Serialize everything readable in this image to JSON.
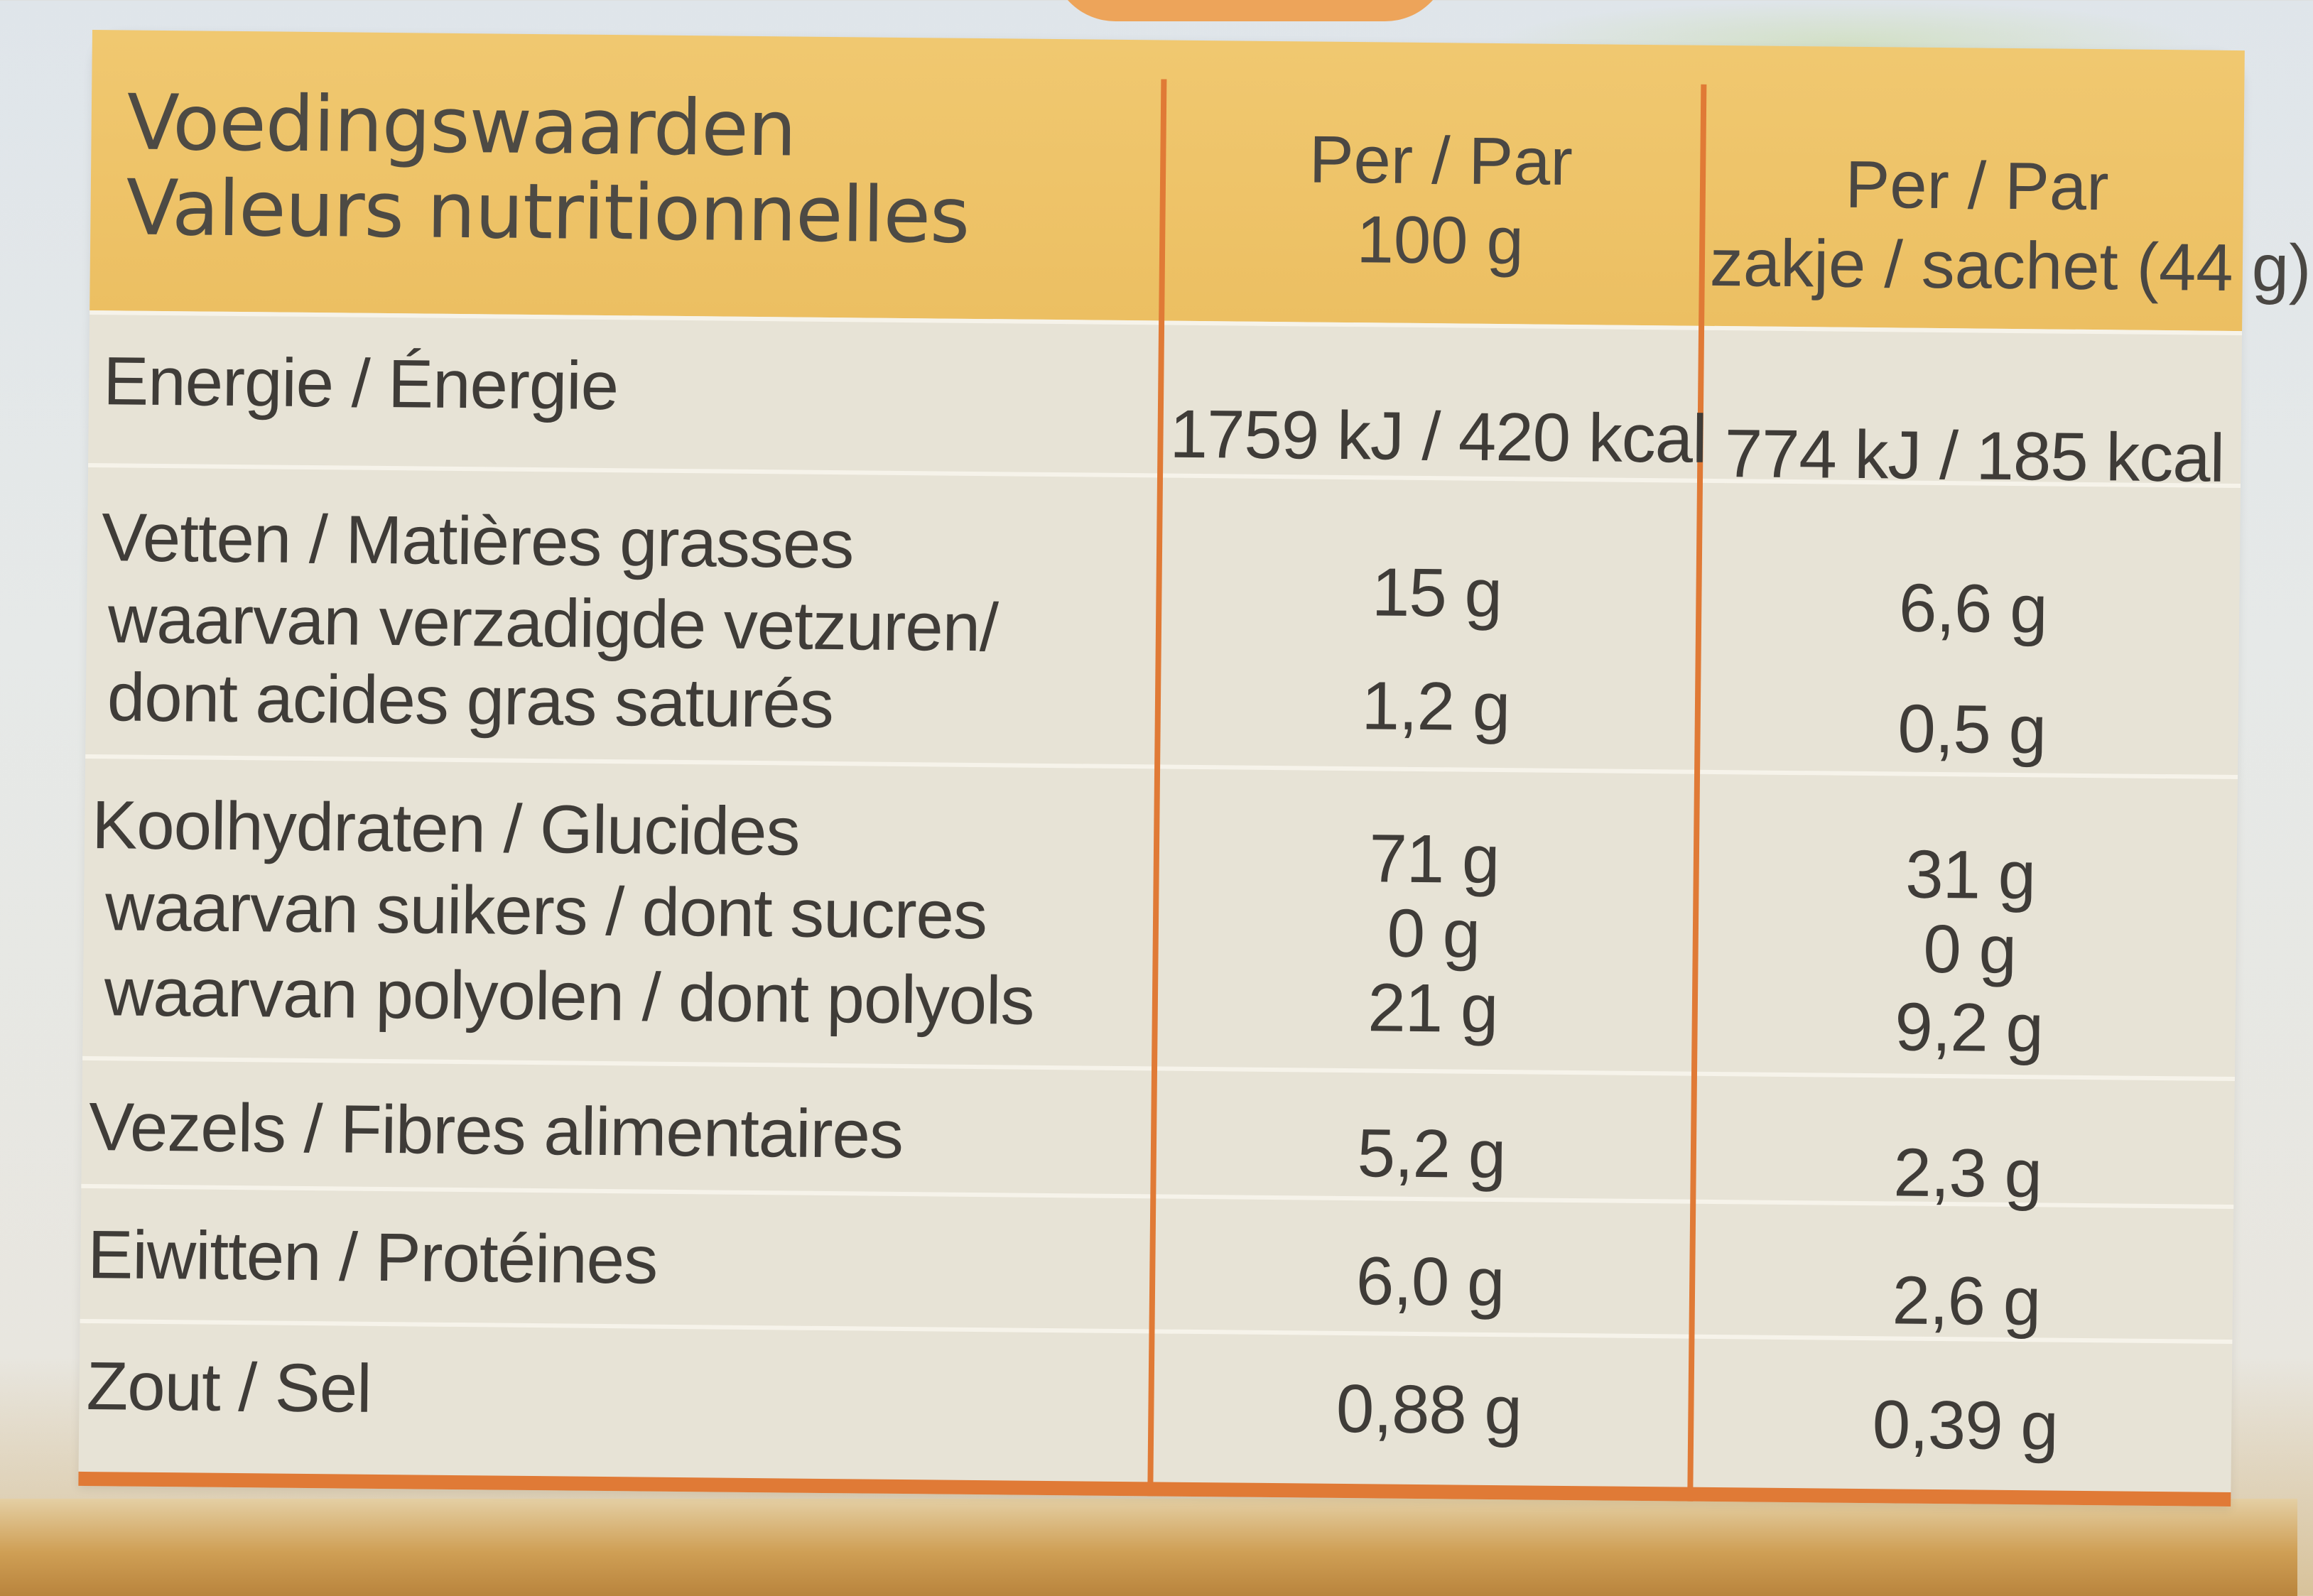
{
  "table": {
    "header": {
      "title_nl": "Voedingswaarden",
      "title_fr": "Valeurs nutritionnelles",
      "col1_line1": "Per / Par",
      "col1_line2": "100 g",
      "col2_line1": "Per / Par",
      "col2_line2": "zakje / sachet (44 g)"
    },
    "rows": [
      {
        "label": "Energie / Énergie",
        "per100": "1759 kJ / 420 kcal",
        "perSachet": "774 kJ / 185 kcal"
      },
      {
        "label": "Vetten / Matières grasses",
        "per100": "15 g",
        "perSachet": "6,6 g"
      },
      {
        "label_line1": "waarvan verzadigde vetzuren/",
        "label_line2": "dont acides gras saturés",
        "per100": "1,2 g",
        "perSachet": "0,5 g"
      },
      {
        "label": "Koolhydraten / Glucides",
        "per100": "71 g",
        "perSachet": "31 g"
      },
      {
        "label": "waarvan suikers / dont sucres",
        "per100": "0 g",
        "perSachet": "0 g"
      },
      {
        "label": "waarvan polyolen / dont polyols",
        "per100": "21 g",
        "perSachet": "9,2 g"
      },
      {
        "label": "Vezels / Fibres alimentaires",
        "per100": "5,2 g",
        "perSachet": "2,3 g"
      },
      {
        "label": "Eiwitten / Protéines",
        "per100": "6,0 g",
        "perSachet": "2,6 g"
      },
      {
        "label": "Zout / Sel",
        "per100": "0,88 g",
        "perSachet": "0,39 g"
      }
    ]
  },
  "colors": {
    "header": "#ecbf62",
    "divider": "#e07a36",
    "body": "#e7e3d6",
    "text": "#3f3c38"
  }
}
